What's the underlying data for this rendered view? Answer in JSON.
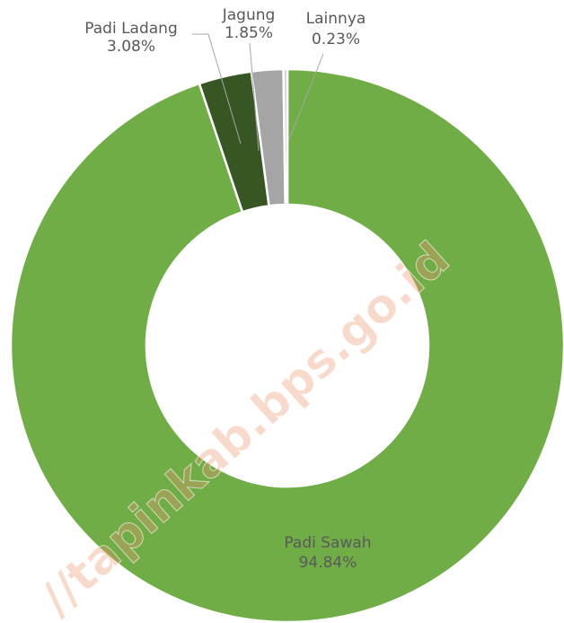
{
  "chart_data": {
    "type": "donut",
    "categories": [
      "Padi Sawah",
      "Padi Ladang",
      "Jagung",
      "Lainnya"
    ],
    "values": [
      94.84,
      3.08,
      1.85,
      0.23
    ],
    "value_labels": [
      "94.84%",
      "3.08%",
      "1.85%",
      "0.23%"
    ],
    "colors": [
      "#70ad47",
      "#375623",
      "#a5a5a5",
      "#d0d0d0"
    ],
    "watermark": "//tapinkab.bps.go.id"
  }
}
